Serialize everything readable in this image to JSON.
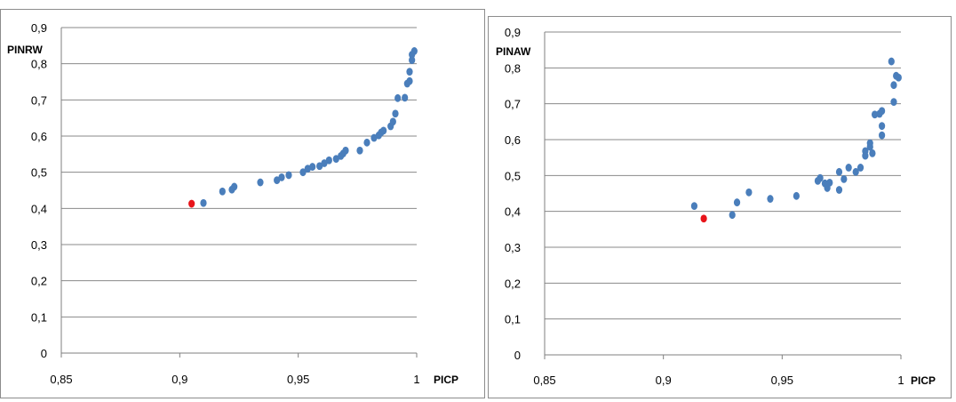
{
  "chart_data": [
    {
      "type": "scatter",
      "ylabel": "PINRW",
      "xlabel": "PICP",
      "xlim": [
        0.85,
        1.0
      ],
      "ylim": [
        0,
        0.9
      ],
      "x_ticks": [
        "0,85",
        "0,9",
        "0,95",
        "1"
      ],
      "y_ticks": [
        "0",
        "0,1",
        "0,2",
        "0,3",
        "0,4",
        "0,5",
        "0,6",
        "0,7",
        "0,8",
        "0,9"
      ],
      "grid": "horizontal",
      "colors": {
        "points": "#4a7ebb",
        "highlight": "#e8141a"
      },
      "series": [
        {
          "color": "#4a7ebb",
          "points": [
            [
              0.91,
              0.415
            ],
            [
              0.918,
              0.447
            ],
            [
              0.922,
              0.452
            ],
            [
              0.923,
              0.46
            ],
            [
              0.934,
              0.472
            ],
            [
              0.941,
              0.478
            ],
            [
              0.943,
              0.486
            ],
            [
              0.946,
              0.492
            ],
            [
              0.952,
              0.5
            ],
            [
              0.954,
              0.51
            ],
            [
              0.956,
              0.515
            ],
            [
              0.959,
              0.517
            ],
            [
              0.961,
              0.525
            ],
            [
              0.963,
              0.533
            ],
            [
              0.966,
              0.537
            ],
            [
              0.968,
              0.545
            ],
            [
              0.969,
              0.552
            ],
            [
              0.97,
              0.56
            ],
            [
              0.976,
              0.56
            ],
            [
              0.979,
              0.582
            ],
            [
              0.982,
              0.595
            ],
            [
              0.984,
              0.602
            ],
            [
              0.985,
              0.61
            ],
            [
              0.986,
              0.615
            ],
            [
              0.989,
              0.627
            ],
            [
              0.99,
              0.64
            ],
            [
              0.991,
              0.662
            ],
            [
              0.992,
              0.705
            ],
            [
              0.995,
              0.706
            ],
            [
              0.996,
              0.745
            ],
            [
              0.997,
              0.752
            ],
            [
              0.997,
              0.778
            ],
            [
              0.998,
              0.81
            ],
            [
              0.998,
              0.825
            ],
            [
              0.999,
              0.835
            ]
          ]
        },
        {
          "color": "#e8141a",
          "points": [
            [
              0.905,
              0.413
            ]
          ]
        }
      ]
    },
    {
      "type": "scatter",
      "ylabel": "PINAW",
      "xlabel": "PICP",
      "xlim": [
        0.85,
        1.0
      ],
      "ylim": [
        0,
        0.9
      ],
      "x_ticks": [
        "0,85",
        "0,9",
        "0,95",
        "1"
      ],
      "y_ticks": [
        "0",
        "0,1",
        "0,2",
        "0,3",
        "0,4",
        "0,5",
        "0,6",
        "0,7",
        "0,8",
        "0,9"
      ],
      "grid": "horizontal",
      "colors": {
        "points": "#4a7ebb",
        "highlight": "#e8141a"
      },
      "series": [
        {
          "color": "#4a7ebb",
          "points": [
            [
              0.913,
              0.415
            ],
            [
              0.929,
              0.39
            ],
            [
              0.931,
              0.425
            ],
            [
              0.936,
              0.453
            ],
            [
              0.945,
              0.435
            ],
            [
              0.956,
              0.443
            ],
            [
              0.965,
              0.485
            ],
            [
              0.966,
              0.493
            ],
            [
              0.968,
              0.478
            ],
            [
              0.969,
              0.465
            ],
            [
              0.97,
              0.48
            ],
            [
              0.974,
              0.46
            ],
            [
              0.974,
              0.51
            ],
            [
              0.976,
              0.49
            ],
            [
              0.978,
              0.522
            ],
            [
              0.981,
              0.51
            ],
            [
              0.983,
              0.522
            ],
            [
              0.985,
              0.555
            ],
            [
              0.985,
              0.568
            ],
            [
              0.987,
              0.58
            ],
            [
              0.987,
              0.59
            ],
            [
              0.988,
              0.562
            ],
            [
              0.989,
              0.67
            ],
            [
              0.991,
              0.672
            ],
            [
              0.992,
              0.68
            ],
            [
              0.992,
              0.638
            ],
            [
              0.992,
              0.612
            ],
            [
              0.996,
              0.818
            ],
            [
              0.997,
              0.705
            ],
            [
              0.997,
              0.752
            ],
            [
              0.998,
              0.778
            ],
            [
              0.999,
              0.773
            ]
          ]
        },
        {
          "color": "#e8141a",
          "points": [
            [
              0.917,
              0.38
            ]
          ]
        }
      ]
    }
  ]
}
